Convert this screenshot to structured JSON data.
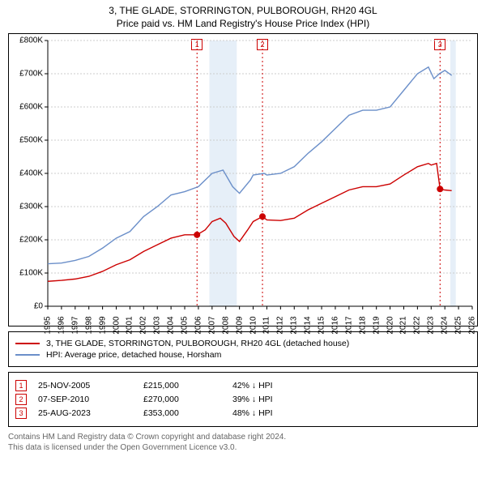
{
  "title": {
    "line1": "3, THE GLADE, STORRINGTON, PULBOROUGH, RH20 4GL",
    "line2": "Price paid vs. HM Land Registry's House Price Index (HPI)"
  },
  "chart": {
    "type": "line",
    "background_color": "#ffffff",
    "grid_color": "#cccccc",
    "x": {
      "min": 1995,
      "max": 2026,
      "ticks": [
        1995,
        1996,
        1997,
        1998,
        1999,
        2000,
        2001,
        2002,
        2003,
        2004,
        2005,
        2006,
        2007,
        2008,
        2009,
        2010,
        2011,
        2012,
        2013,
        2014,
        2015,
        2016,
        2017,
        2018,
        2019,
        2020,
        2021,
        2022,
        2023,
        2024,
        2025,
        2026
      ]
    },
    "y": {
      "min": 0,
      "max": 800000,
      "ticks": [
        0,
        100000,
        200000,
        300000,
        400000,
        500000,
        600000,
        700000,
        800000
      ],
      "tick_labels": [
        "£0",
        "£100K",
        "£200K",
        "£300K",
        "£400K",
        "£500K",
        "£600K",
        "£700K",
        "£800K"
      ]
    },
    "shaded_ranges": [
      {
        "x0": 2006.8,
        "x1": 2008.8
      },
      {
        "x0": 2024.4,
        "x1": 2024.8
      }
    ],
    "series": [
      {
        "name": "property",
        "color": "#cc0000",
        "line_width": 1.4,
        "data": [
          [
            1995,
            75000
          ],
          [
            1996,
            78000
          ],
          [
            1997,
            82000
          ],
          [
            1998,
            90000
          ],
          [
            1999,
            105000
          ],
          [
            2000,
            125000
          ],
          [
            2001,
            140000
          ],
          [
            2002,
            165000
          ],
          [
            2003,
            185000
          ],
          [
            2004,
            205000
          ],
          [
            2005,
            215000
          ],
          [
            2005.9,
            215000
          ],
          [
            2006.5,
            230000
          ],
          [
            2007,
            255000
          ],
          [
            2007.6,
            265000
          ],
          [
            2008,
            250000
          ],
          [
            2008.6,
            210000
          ],
          [
            2009,
            195000
          ],
          [
            2009.6,
            230000
          ],
          [
            2010,
            255000
          ],
          [
            2010.68,
            270000
          ],
          [
            2011,
            260000
          ],
          [
            2012,
            258000
          ],
          [
            2013,
            265000
          ],
          [
            2014,
            290000
          ],
          [
            2015,
            310000
          ],
          [
            2016,
            330000
          ],
          [
            2017,
            350000
          ],
          [
            2018,
            360000
          ],
          [
            2019,
            360000
          ],
          [
            2020,
            368000
          ],
          [
            2021,
            395000
          ],
          [
            2022,
            420000
          ],
          [
            2022.8,
            430000
          ],
          [
            2023,
            425000
          ],
          [
            2023.4,
            430000
          ],
          [
            2023.65,
            353000
          ],
          [
            2024,
            350000
          ],
          [
            2024.5,
            348000
          ]
        ]
      },
      {
        "name": "hpi",
        "color": "#6b8fc9",
        "line_width": 1.4,
        "data": [
          [
            1995,
            128000
          ],
          [
            1996,
            130000
          ],
          [
            1997,
            138000
          ],
          [
            1998,
            150000
          ],
          [
            1999,
            175000
          ],
          [
            2000,
            205000
          ],
          [
            2001,
            225000
          ],
          [
            2002,
            270000
          ],
          [
            2003,
            300000
          ],
          [
            2004,
            335000
          ],
          [
            2005,
            345000
          ],
          [
            2006,
            360000
          ],
          [
            2007,
            400000
          ],
          [
            2007.8,
            410000
          ],
          [
            2008.5,
            360000
          ],
          [
            2009,
            340000
          ],
          [
            2009.8,
            380000
          ],
          [
            2010,
            395000
          ],
          [
            2010.8,
            400000
          ],
          [
            2011,
            395000
          ],
          [
            2012,
            400000
          ],
          [
            2013,
            420000
          ],
          [
            2014,
            460000
          ],
          [
            2015,
            495000
          ],
          [
            2016,
            535000
          ],
          [
            2017,
            575000
          ],
          [
            2018,
            590000
          ],
          [
            2019,
            590000
          ],
          [
            2020,
            600000
          ],
          [
            2021,
            650000
          ],
          [
            2022,
            700000
          ],
          [
            2022.8,
            720000
          ],
          [
            2023.2,
            685000
          ],
          [
            2023.6,
            700000
          ],
          [
            2024,
            710000
          ],
          [
            2024.5,
            695000
          ]
        ]
      }
    ],
    "event_markers": [
      {
        "n": "1",
        "x": 2005.9,
        "y": 215000
      },
      {
        "n": "2",
        "x": 2010.68,
        "y": 270000
      },
      {
        "n": "3",
        "x": 2023.65,
        "y": 353000
      }
    ]
  },
  "legend": {
    "items": [
      {
        "color": "#cc0000",
        "label": "3, THE GLADE, STORRINGTON, PULBOROUGH, RH20 4GL (detached house)"
      },
      {
        "color": "#6b8fc9",
        "label": "HPI: Average price, detached house, Horsham"
      }
    ]
  },
  "transactions": [
    {
      "n": "1",
      "date": "25-NOV-2005",
      "price": "£215,000",
      "pct": "42%",
      "arrow": "↓",
      "vs": "HPI"
    },
    {
      "n": "2",
      "date": "07-SEP-2010",
      "price": "£270,000",
      "pct": "39%",
      "arrow": "↓",
      "vs": "HPI"
    },
    {
      "n": "3",
      "date": "25-AUG-2023",
      "price": "£353,000",
      "pct": "48%",
      "arrow": "↓",
      "vs": "HPI"
    }
  ],
  "footer": {
    "line1": "Contains HM Land Registry data © Crown copyright and database right 2024.",
    "line2": "This data is licensed under the Open Government Licence v3.0."
  }
}
